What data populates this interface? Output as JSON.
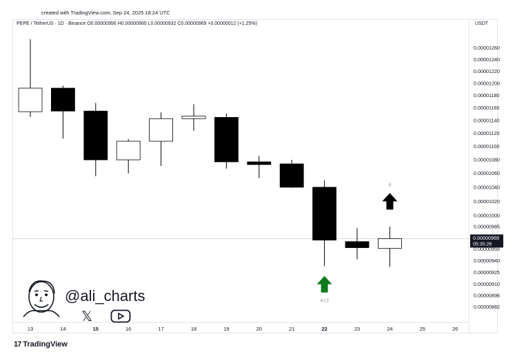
{
  "header": {
    "created": "created with TradingView.com, Sep 24, 2025 18:24 UTC",
    "symbol_line": "PEPE / TetherUS · 1D · Binance  O0.00000956  H0.00000985  L0.00000932  C0.00000969  +0.00000012 (+1.25%)",
    "currency": "USDT"
  },
  "branding": {
    "handle": "@ali_charts",
    "footer": "TradingView",
    "x_icon": "x-logo-icon",
    "youtube_icon": "youtube-icon"
  },
  "colors": {
    "bearish": "#000000",
    "bullish_fill": "#ffffff",
    "outline": "#000000",
    "buy_arrow": "#0d7a1e",
    "sell_arrow": "#000000",
    "price_line": "#d1d4dc"
  },
  "chart_data": {
    "type": "candlestick",
    "x_ticks": [
      "13",
      "14",
      "15",
      "16",
      "17",
      "18",
      "19",
      "20",
      "21",
      "22",
      "23",
      "24",
      "25",
      "26"
    ],
    "bold_ticks": [
      "15",
      "22"
    ],
    "y_ticks": [
      "0.00001260",
      "0.00001240",
      "0.00001220",
      "0.00001200",
      "0.00001180",
      "0.00001160",
      "0.00001140",
      "0.00001120",
      "0.00001100",
      "0.00001080",
      "0.00001060",
      "0.00001040",
      "0.00001020",
      "0.00001000",
      "0.00000985",
      "0.00000955",
      "0.00000940",
      "0.00000925",
      "0.00000910",
      "0.00000896",
      "0.00000882"
    ],
    "y_scale": "log",
    "ylim": [
      8.75e-06,
      1.275e-05
    ],
    "candles": [
      {
        "date": "13",
        "open": 1.154e-05,
        "high": 1.275e-05,
        "low": 1.146e-05,
        "close": 1.192e-05
      },
      {
        "date": "14",
        "open": 1.192e-05,
        "high": 1.196e-05,
        "low": 1.112e-05,
        "close": 1.155e-05
      },
      {
        "date": "15",
        "open": 1.155e-05,
        "high": 1.168e-05,
        "low": 1.056e-05,
        "close": 1.08e-05
      },
      {
        "date": "16",
        "open": 1.08e-05,
        "high": 1.111e-05,
        "low": 1.06e-05,
        "close": 1.108e-05
      },
      {
        "date": "17",
        "open": 1.108e-05,
        "high": 1.153e-05,
        "low": 1.071e-05,
        "close": 1.143e-05
      },
      {
        "date": "18",
        "open": 1.143e-05,
        "high": 1.166e-05,
        "low": 1.124e-05,
        "close": 1.147e-05
      },
      {
        "date": "19",
        "open": 1.145e-05,
        "high": 1.151e-05,
        "low": 1.067e-05,
        "close": 1.077e-05
      },
      {
        "date": "20",
        "open": 1.077e-05,
        "high": 1.086e-05,
        "low": 1.053e-05,
        "close": 1.073e-05
      },
      {
        "date": "21",
        "open": 1.074e-05,
        "high": 1.08e-05,
        "low": 1.039e-05,
        "close": 1.04e-05
      },
      {
        "date": "22",
        "open": 1.04e-05,
        "high": 1.05e-05,
        "low": 9.33e-06,
        "close": 9.67e-06
      },
      {
        "date": "23",
        "open": 9.65e-06,
        "high": 9.83e-06,
        "low": 9.42e-06,
        "close": 9.57e-06
      },
      {
        "date": "24",
        "open": 9.56e-06,
        "high": 9.85e-06,
        "low": 9.32e-06,
        "close": 9.69e-06
      }
    ],
    "last_price": {
      "label": "0.00000969",
      "countdown": "05:35:26",
      "value": 9.69e-06
    },
    "annotations": [
      {
        "type": "buy-arrow",
        "date": "22",
        "label": "A13",
        "value": 9.1e-06
      },
      {
        "type": "sell-arrow",
        "date": "24",
        "label": "9",
        "value": 1.02e-05
      }
    ]
  }
}
